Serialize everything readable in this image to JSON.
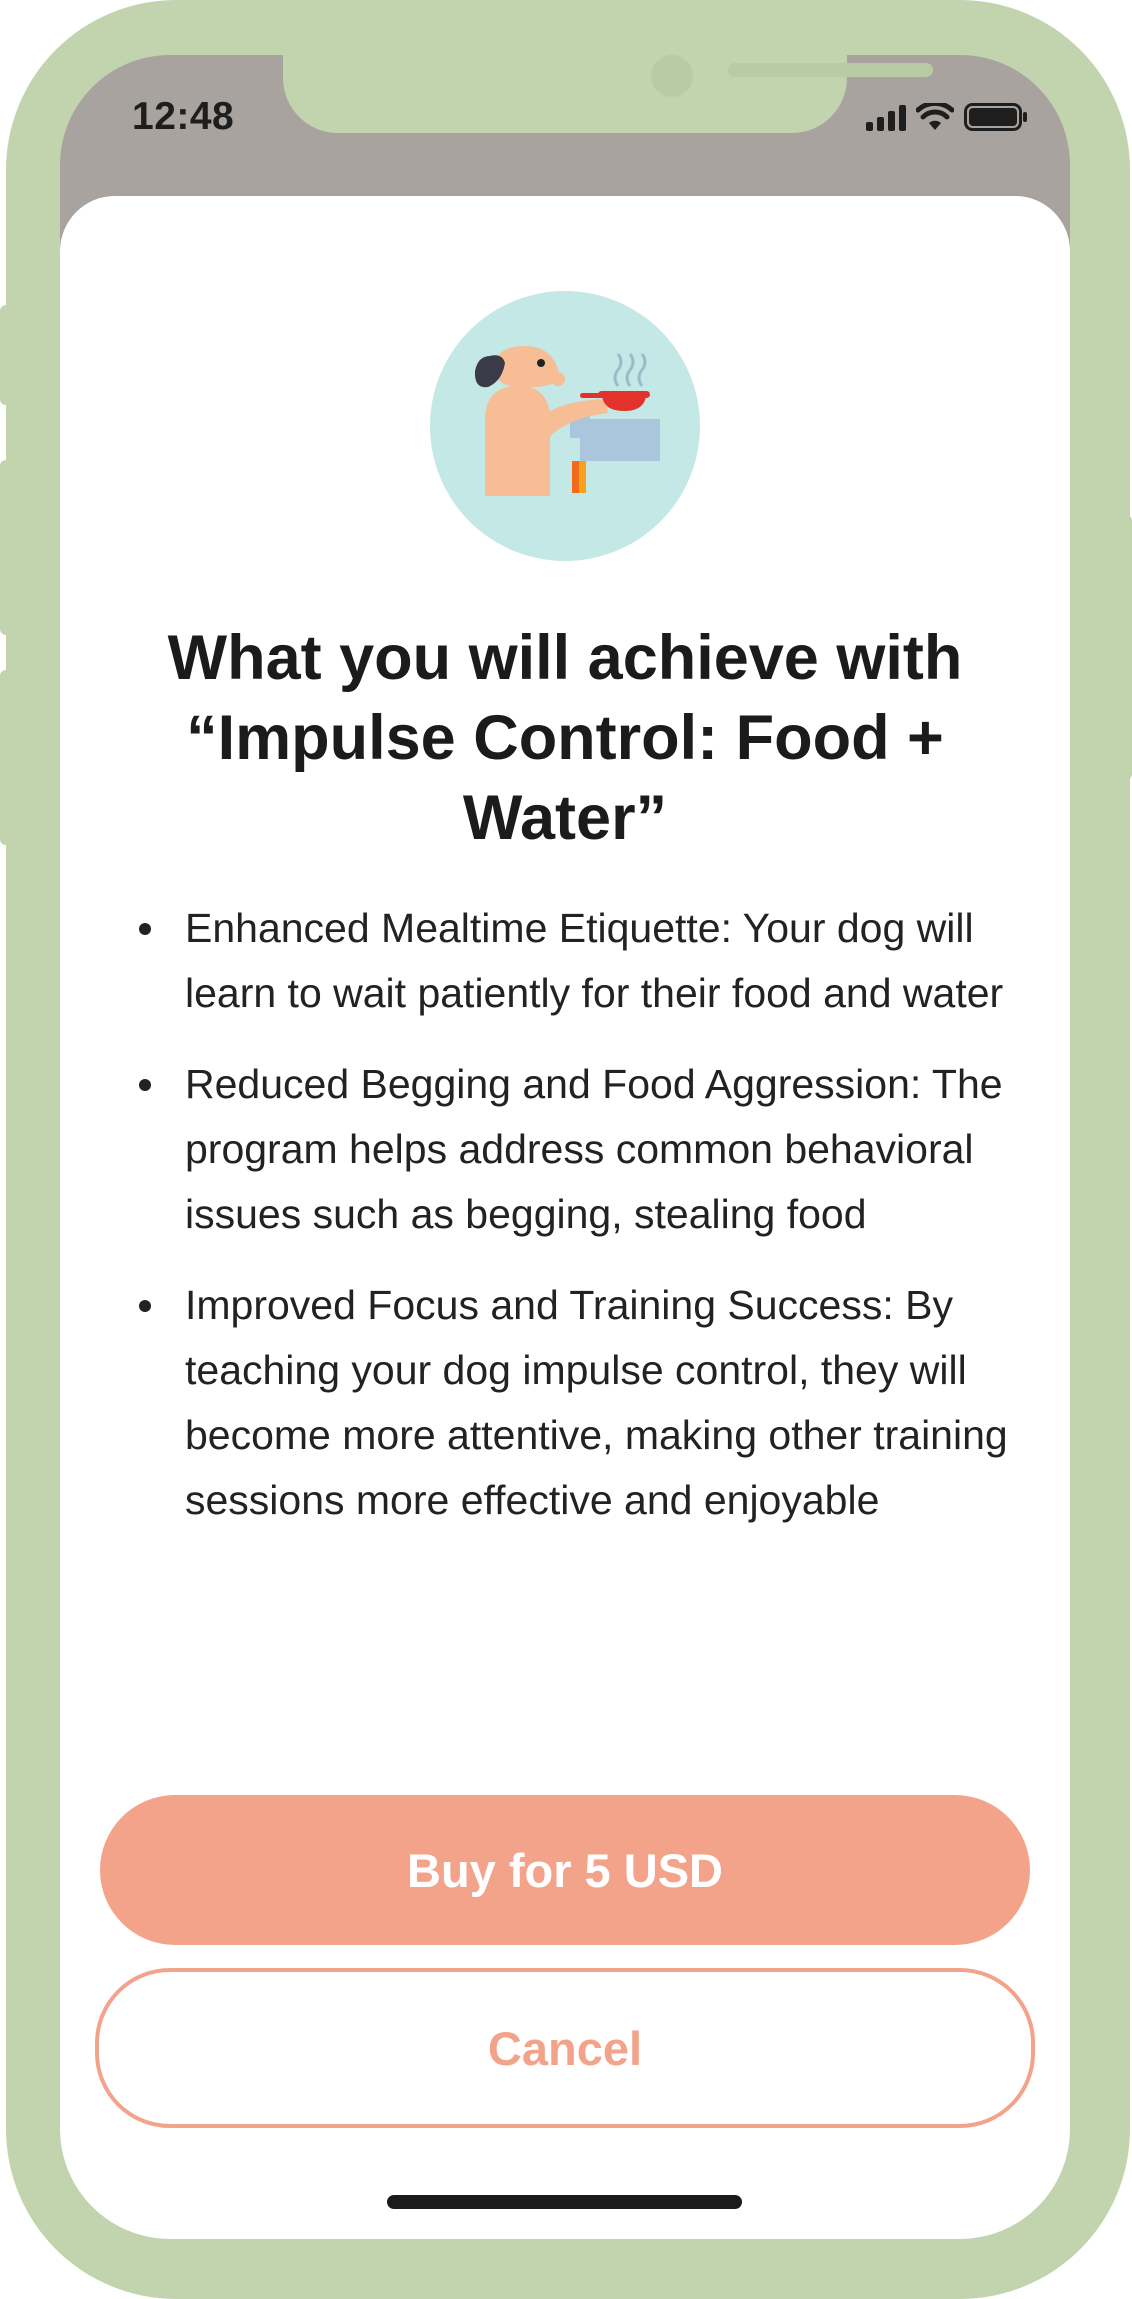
{
  "status_bar": {
    "time": "12:48"
  },
  "sheet": {
    "illustration": "dog-cooking-icon",
    "title": "What you will achieve with “Impulse Control: Food + Water”",
    "benefits": [
      "Enhanced Mealtime Etiquette: Your dog will learn to wait patiently for their food and water",
      "Reduced Begging and Food Aggression: The program helps address common behavioral issues such as begging, stealing food",
      "Improved Focus and Training Success: By teaching your dog impulse control, they will become more attentive, making other training sessions more effective and enjoyable"
    ],
    "buy_label": "Buy for 5 USD",
    "cancel_label": "Cancel"
  },
  "colors": {
    "frame": "#c1d4ae",
    "accent": "#f4a38b",
    "illustration_bg": "#c4e8e5"
  }
}
